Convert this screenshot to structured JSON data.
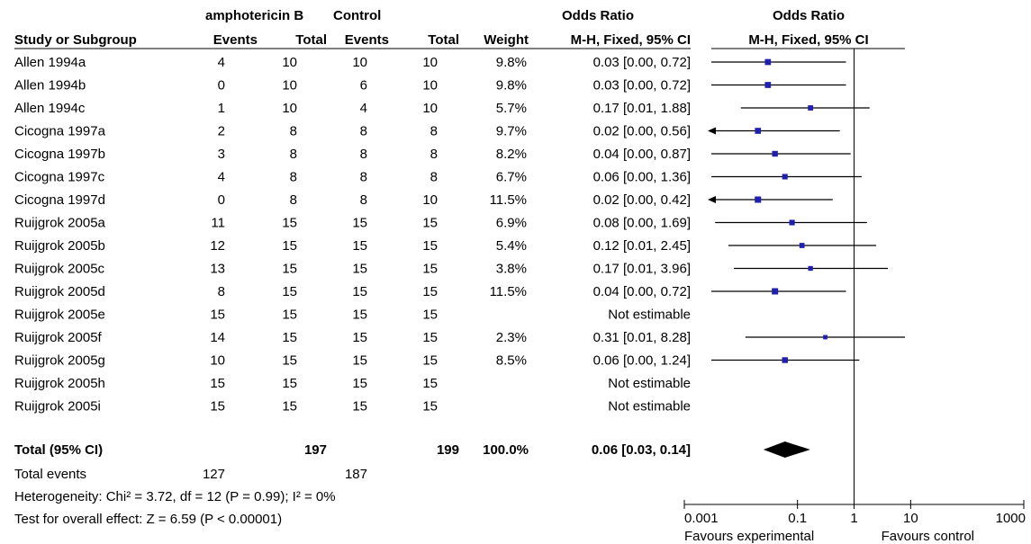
{
  "headers": {
    "group_a": "amphotericin B",
    "group_b": "Control",
    "effect_top": "Odds Ratio",
    "plot_top": "Odds Ratio",
    "study": "Study or Subgroup",
    "events_a": "Events",
    "total_a": "Total",
    "events_b": "Events",
    "total_b": "Total",
    "weight": "Weight",
    "effect_method": "M-H, Fixed, 95% CI",
    "plot_method": "M-H, Fixed, 95% CI"
  },
  "chart_data": {
    "type": "forest",
    "x_scale": "log",
    "xlim": [
      0.001,
      1000
    ],
    "ticks": [
      "0.001",
      "0.1",
      "1",
      "10",
      "1000"
    ],
    "reference_line": 1,
    "favours_left": "Favours experimental",
    "favours_right": "Favours control",
    "studies": [
      {
        "name": "Allen 1994a",
        "ea": "4",
        "ta": "10",
        "eb": "10",
        "tb": "10",
        "weight": "9.8%",
        "ci_text": "0.03 [0.00, 0.72]",
        "or": 0.03,
        "lo": 0.0012,
        "hi": 0.72
      },
      {
        "name": "Allen 1994b",
        "ea": "0",
        "ta": "10",
        "eb": "6",
        "tb": "10",
        "weight": "9.8%",
        "ci_text": "0.03 [0.00, 0.72]",
        "or": 0.03,
        "lo": 0.0012,
        "hi": 0.72
      },
      {
        "name": "Allen 1994c",
        "ea": "1",
        "ta": "10",
        "eb": "4",
        "tb": "10",
        "weight": "5.7%",
        "ci_text": "0.17 [0.01, 1.88]",
        "or": 0.17,
        "lo": 0.01,
        "hi": 1.88
      },
      {
        "name": "Cicogna 1997a",
        "ea": "2",
        "ta": "8",
        "eb": "8",
        "tb": "8",
        "weight": "9.7%",
        "ci_text": "0.02 [0.00, 0.56]",
        "or": 0.02,
        "lo": 0.0004,
        "hi": 0.56,
        "arrow_left": true
      },
      {
        "name": "Cicogna 1997b",
        "ea": "3",
        "ta": "8",
        "eb": "8",
        "tb": "8",
        "weight": "8.2%",
        "ci_text": "0.04 [0.00, 0.87]",
        "or": 0.04,
        "lo": 0.0013,
        "hi": 0.87
      },
      {
        "name": "Cicogna 1997c",
        "ea": "4",
        "ta": "8",
        "eb": "8",
        "tb": "8",
        "weight": "6.7%",
        "ci_text": "0.06 [0.00, 1.36]",
        "or": 0.06,
        "lo": 0.0022,
        "hi": 1.36
      },
      {
        "name": "Cicogna 1997d",
        "ea": "0",
        "ta": "8",
        "eb": "8",
        "tb": "10",
        "weight": "11.5%",
        "ci_text": "0.02 [0.00, 0.42]",
        "or": 0.02,
        "lo": 0.0004,
        "hi": 0.42,
        "arrow_left": true
      },
      {
        "name": "Ruijgrok 2005a",
        "ea": "11",
        "ta": "15",
        "eb": "15",
        "tb": "15",
        "weight": "6.9%",
        "ci_text": "0.08 [0.00, 1.69]",
        "or": 0.08,
        "lo": 0.0035,
        "hi": 1.69
      },
      {
        "name": "Ruijgrok 2005b",
        "ea": "12",
        "ta": "15",
        "eb": "15",
        "tb": "15",
        "weight": "5.4%",
        "ci_text": "0.12 [0.01, 2.45]",
        "or": 0.12,
        "lo": 0.006,
        "hi": 2.45
      },
      {
        "name": "Ruijgrok 2005c",
        "ea": "13",
        "ta": "15",
        "eb": "15",
        "tb": "15",
        "weight": "3.8%",
        "ci_text": "0.17 [0.01, 3.96]",
        "or": 0.17,
        "lo": 0.0075,
        "hi": 3.96
      },
      {
        "name": "Ruijgrok 2005d",
        "ea": "8",
        "ta": "15",
        "eb": "15",
        "tb": "15",
        "weight": "11.5%",
        "ci_text": "0.04 [0.00, 0.72]",
        "or": 0.04,
        "lo": 0.0015,
        "hi": 0.72
      },
      {
        "name": "Ruijgrok 2005e",
        "ea": "15",
        "ta": "15",
        "eb": "15",
        "tb": "15",
        "weight": "",
        "ci_text": "Not estimable"
      },
      {
        "name": "Ruijgrok 2005f",
        "ea": "14",
        "ta": "15",
        "eb": "15",
        "tb": "15",
        "weight": "2.3%",
        "ci_text": "0.31 [0.01, 8.28]",
        "or": 0.31,
        "lo": 0.012,
        "hi": 8.28
      },
      {
        "name": "Ruijgrok 2005g",
        "ea": "10",
        "ta": "15",
        "eb": "15",
        "tb": "15",
        "weight": "8.5%",
        "ci_text": "0.06 [0.00, 1.24]",
        "or": 0.06,
        "lo": 0.0024,
        "hi": 1.24
      },
      {
        "name": "Ruijgrok 2005h",
        "ea": "15",
        "ta": "15",
        "eb": "15",
        "tb": "15",
        "weight": "",
        "ci_text": "Not estimable"
      },
      {
        "name": "Ruijgrok 2005i",
        "ea": "15",
        "ta": "15",
        "eb": "15",
        "tb": "15",
        "weight": "",
        "ci_text": "Not estimable"
      }
    ],
    "total": {
      "name": "Total (95% CI)",
      "ta": "197",
      "tb": "199",
      "weight": "100.0%",
      "ci_text": "0.06 [0.03, 0.14]",
      "or": 0.06,
      "lo": 0.03,
      "hi": 0.14
    }
  },
  "footer": {
    "events_label": "Total events",
    "events_a": "127",
    "events_b": "187",
    "heterogeneity": "Heterogeneity: Chi² = 3.72, df = 12 (P = 0.99); I² = 0%",
    "overall": "Test for overall effect: Z = 6.59 (P < 0.00001)"
  }
}
